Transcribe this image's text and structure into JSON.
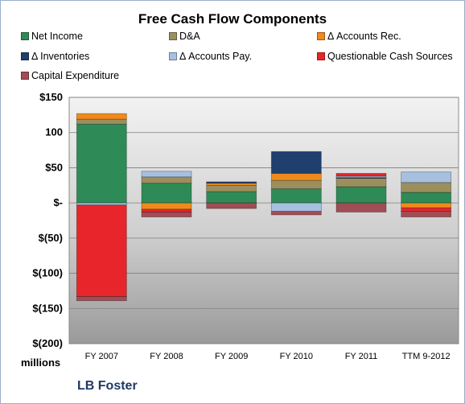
{
  "chart_data": {
    "type": "bar",
    "stacked": true,
    "title": "Free Cash Flow Components",
    "units_label": "millions",
    "company": "LB Foster",
    "categories": [
      "FY 2007",
      "FY 2008",
      "FY 2009",
      "FY 2010",
      "FY 2011",
      "TTM 9-2012"
    ],
    "ylim": [
      -200,
      150
    ],
    "yticks": [
      150,
      100,
      50,
      0,
      -50,
      -100,
      -150,
      -200
    ],
    "ytick_labels": [
      "$150",
      "100",
      "$50",
      "$-",
      "$(50)",
      "$(100)",
      "$(150)",
      "$(200)"
    ],
    "grid": true,
    "legend_position": "top",
    "series": [
      {
        "name": "Net Income",
        "color": "#2e8b57",
        "values": [
          112,
          28,
          16,
          20,
          23,
          15
        ]
      },
      {
        "name": "D&A",
        "color": "#9c8f5e",
        "values": [
          7,
          9,
          9,
          12,
          12,
          14
        ]
      },
      {
        "name": "Δ Accounts Rec.",
        "color": "#f08a1c",
        "values": [
          8,
          -9,
          3,
          10,
          0,
          -7
        ]
      },
      {
        "name": "Δ Inventories",
        "color": "#1f3f6e",
        "values": [
          0,
          0,
          2,
          31,
          1,
          0
        ]
      },
      {
        "name": "Δ Accounts Pay.",
        "color": "#a7c0e0",
        "values": [
          -3,
          8,
          0,
          -12,
          2,
          15
        ]
      },
      {
        "name": "Questionable Cash Sources",
        "color": "#e8252a",
        "values": [
          -130,
          -4,
          0,
          0,
          4,
          -5
        ]
      },
      {
        "name": "Capital Expenditure",
        "color": "#a14d55",
        "values": [
          -6,
          -7,
          -8,
          -5,
          -13,
          -8
        ]
      }
    ]
  }
}
